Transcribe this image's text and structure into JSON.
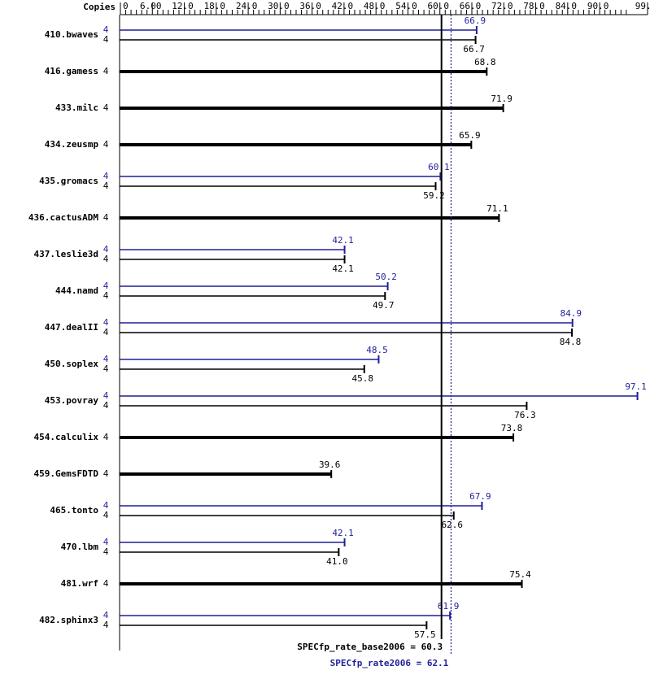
{
  "chart_data": {
    "type": "bar",
    "orientation": "horizontal",
    "copies_header": "Copies",
    "categories": [
      "410.bwaves",
      "416.gamess",
      "433.milc",
      "434.zeusmp",
      "435.gromacs",
      "436.cactusADM",
      "437.leslie3d",
      "444.namd",
      "447.dealII",
      "450.soplex",
      "453.povray",
      "454.calculix",
      "459.GemsFDTD",
      "465.tonto",
      "470.lbm",
      "481.wrf",
      "482.sphinx3"
    ],
    "series": [
      {
        "color": "#1f1f9a",
        "values": [
          66.9,
          null,
          null,
          null,
          60.1,
          null,
          42.1,
          50.2,
          84.9,
          48.5,
          97.1,
          null,
          null,
          67.9,
          42.1,
          null,
          61.9
        ],
        "value_labels": [
          "66.9",
          null,
          null,
          null,
          "60.1",
          null,
          "42.1",
          "50.2",
          "84.9",
          "48.5",
          "97.1",
          null,
          null,
          "67.9",
          "42.1",
          null,
          "61.9"
        ],
        "copies": [
          4,
          null,
          null,
          null,
          4,
          null,
          4,
          4,
          4,
          4,
          4,
          null,
          null,
          4,
          4,
          null,
          4
        ]
      },
      {
        "color": "#000000",
        "values": [
          66.7,
          68.8,
          71.9,
          65.9,
          59.2,
          71.1,
          42.1,
          49.7,
          84.8,
          45.8,
          76.3,
          73.8,
          39.6,
          62.6,
          41.0,
          75.4,
          57.5
        ],
        "value_labels": [
          "66.7",
          "68.8",
          "71.9",
          "65.9",
          "59.2",
          "71.1",
          "42.1",
          "49.7",
          "84.8",
          "45.8",
          "76.3",
          "73.8",
          "39.6",
          "62.6",
          "41.0",
          "75.4",
          "57.5"
        ],
        "copies": [
          4,
          4,
          4,
          4,
          4,
          4,
          4,
          4,
          4,
          4,
          4,
          4,
          4,
          4,
          4,
          4,
          4
        ]
      }
    ],
    "xlim": [
      0,
      99.0
    ],
    "xticks": [
      0,
      {
        "value": 6,
        "label": "6.00"
      },
      {
        "value": 12,
        "label": "12.0"
      },
      {
        "value": 18,
        "label": "18.0"
      },
      {
        "value": 24,
        "label": "24.0"
      },
      {
        "value": 30,
        "label": "30.0"
      },
      {
        "value": 36,
        "label": "36.0"
      },
      {
        "value": 42,
        "label": "42.0"
      },
      {
        "value": 48,
        "label": "48.0"
      },
      {
        "value": 54,
        "label": "54.0"
      },
      {
        "value": 60,
        "label": "60.0"
      },
      {
        "value": 66,
        "label": "66.0"
      },
      {
        "value": 72,
        "label": "72.0"
      },
      {
        "value": 78,
        "label": "78.0"
      },
      {
        "value": 84,
        "label": "84.0"
      },
      {
        "value": 90,
        "label": "90.0"
      },
      {
        "value": 99,
        "label": "99.0"
      }
    ],
    "reference_lines": [
      {
        "label": "SPECfp_rate_base2006 = 60.3",
        "value": 60.3,
        "color": "#000000",
        "style": "solid"
      },
      {
        "label": "SPECfp_rate2006 = 62.1",
        "value": 62.1,
        "color": "#1f1f9a",
        "style": "dotted"
      }
    ]
  }
}
